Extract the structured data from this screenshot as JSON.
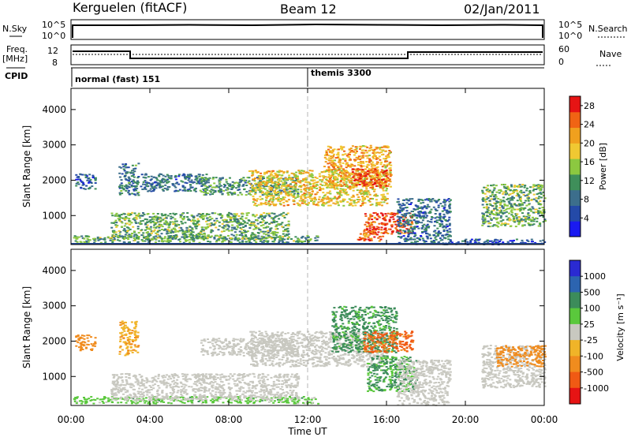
{
  "header": {
    "station": "Kerguelen (fitACF)",
    "beam": "Beam 12",
    "date": "02/Jan/2011"
  },
  "panels": {
    "nsky_label": "N.Sky",
    "nsky_ticks": [
      "10^5",
      "10^0"
    ],
    "nsearch_label": "N.Search",
    "nsearch_ticks": [
      "10^5",
      "10^0"
    ],
    "freq_label_1": "Freq.",
    "freq_label_2": "[MHz]",
    "freq_ticks": [
      "12",
      "8"
    ],
    "nave_label": "Nave",
    "nave_ticks": [
      "60",
      "0"
    ],
    "cpid_label": "CPID",
    "cpid_segments": [
      {
        "name": "normal (fast) 151",
        "from_hour": 0,
        "to_hour": 12
      },
      {
        "name": "themis 3300",
        "from_hour": 12,
        "to_hour": 24
      }
    ]
  },
  "colors": {
    "power": [
      "#1a1af0",
      "#244aa8",
      "#3c6e8c",
      "#3f8f5a",
      "#8cc840",
      "#f0c832",
      "#f0a01e",
      "#f06414",
      "#e61414"
    ],
    "velocity": [
      "#2a2ad2",
      "#2c64b0",
      "#3c8c5a",
      "#5ac83c",
      "#c8c8c0",
      "#f0b428",
      "#f08c1e",
      "#f05a14",
      "#e61414"
    ]
  },
  "chart_data": [
    {
      "type": "heatmap",
      "name": "power",
      "ylabel": "Slant Range [km]",
      "xlabel": "",
      "xticks": [
        "00:00",
        "04:00",
        "08:00",
        "12:00",
        "16:00",
        "20:00",
        "00:00"
      ],
      "yticks": [
        "1000",
        "2000",
        "3000",
        "4000"
      ],
      "xlim_hours": [
        0,
        24
      ],
      "ylim": [
        180,
        4600
      ],
      "colorbar_label": "Power [dB]",
      "colorbar_ticks": [
        "4",
        "8",
        "12",
        "16",
        "20",
        "24",
        "28"
      ],
      "colorbar_range": [
        0,
        30
      ],
      "regions": [
        {
          "t0": 0.1,
          "t1": 12.5,
          "r0": 250,
          "r1": 450,
          "level": 12
        },
        {
          "t0": 0.2,
          "t1": 1.2,
          "r0": 1750,
          "r1": 2200,
          "level": 7
        },
        {
          "t0": 2.4,
          "t1": 3.4,
          "r0": 1600,
          "r1": 2500,
          "level": 9
        },
        {
          "t0": 2.0,
          "t1": 11.0,
          "r0": 350,
          "r1": 1100,
          "level": 13
        },
        {
          "t0": 3.5,
          "t1": 7.0,
          "r0": 1700,
          "r1": 2200,
          "level": 8
        },
        {
          "t0": 6.5,
          "t1": 11.5,
          "r0": 1600,
          "r1": 2100,
          "level": 11
        },
        {
          "t0": 9.0,
          "t1": 16.0,
          "r0": 1300,
          "r1": 2300,
          "level": 19
        },
        {
          "t0": 12.8,
          "t1": 16.2,
          "r0": 1800,
          "r1": 3000,
          "level": 21
        },
        {
          "t0": 14.2,
          "t1": 16.0,
          "r0": 1850,
          "r1": 2350,
          "level": 27
        },
        {
          "t0": 14.8,
          "t1": 17.3,
          "r0": 500,
          "r1": 1100,
          "level": 26
        },
        {
          "t0": 14.5,
          "t1": 15.8,
          "r0": 300,
          "r1": 550,
          "level": 24
        },
        {
          "t0": 16.5,
          "t1": 19.2,
          "r0": 200,
          "r1": 1500,
          "level": 8
        },
        {
          "t0": 20.8,
          "t1": 24.0,
          "r0": 700,
          "r1": 1900,
          "level": 13
        },
        {
          "t0": 19.0,
          "t1": 24.0,
          "r0": 200,
          "r1": 350,
          "level": 6
        }
      ]
    },
    {
      "type": "heatmap",
      "name": "velocity",
      "ylabel": "Slant Range [km]",
      "xlabel": "Time UT",
      "xticks": [
        "00:00",
        "04:00",
        "08:00",
        "12:00",
        "16:00",
        "20:00",
        "00:00"
      ],
      "yticks": [
        "1000",
        "2000",
        "3000",
        "4000"
      ],
      "xlim_hours": [
        0,
        24
      ],
      "ylim": [
        180,
        4600
      ],
      "colorbar_label": "Velocity [m s⁻¹]",
      "colorbar_ticks": [
        "1000",
        "500",
        "100",
        "25",
        "-25",
        "-100",
        "-500",
        "-1000"
      ],
      "regions": [
        {
          "t0": 0.1,
          "t1": 12.5,
          "r0": 250,
          "r1": 450,
          "v": 60
        },
        {
          "t0": 2.0,
          "t1": 11.5,
          "r0": 350,
          "r1": 1100,
          "v": 0
        },
        {
          "t0": 0.2,
          "t1": 1.2,
          "r0": 1750,
          "r1": 2200,
          "v": -300
        },
        {
          "t0": 2.4,
          "t1": 3.4,
          "r0": 1600,
          "r1": 2600,
          "v": -80
        },
        {
          "t0": 6.5,
          "t1": 11.5,
          "r0": 1600,
          "r1": 2100,
          "v": 0
        },
        {
          "t0": 9.0,
          "t1": 16.0,
          "r0": 1300,
          "r1": 2300,
          "v": 0
        },
        {
          "t0": 13.2,
          "t1": 16.5,
          "r0": 1700,
          "r1": 3000,
          "v": 150
        },
        {
          "t0": 15.0,
          "t1": 17.5,
          "r0": 600,
          "r1": 1600,
          "v": 120
        },
        {
          "t0": 14.8,
          "t1": 17.3,
          "r0": 1700,
          "r1": 2300,
          "v": -600
        },
        {
          "t0": 16.5,
          "t1": 19.2,
          "r0": 200,
          "r1": 1500,
          "v": 0
        },
        {
          "t0": 20.8,
          "t1": 24.0,
          "r0": 700,
          "r1": 1900,
          "v": 0
        },
        {
          "t0": 21.5,
          "t1": 24.0,
          "r0": 1300,
          "r1": 1900,
          "v": -200
        }
      ]
    }
  ]
}
